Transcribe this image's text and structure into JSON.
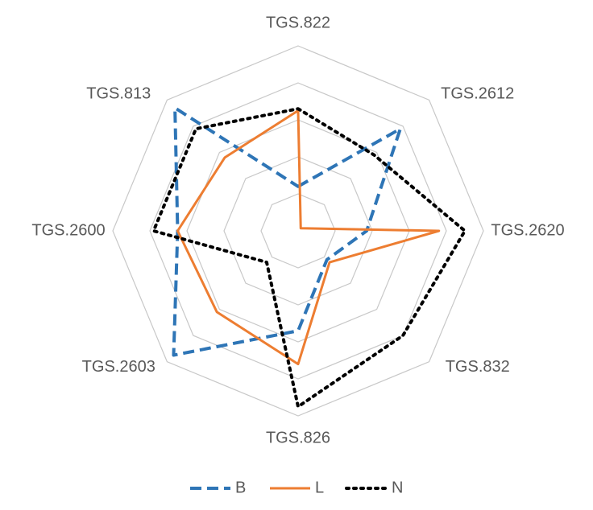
{
  "chart_data": {
    "type": "radar",
    "categories": [
      "TGS.822",
      "TGS.2612",
      "TGS.2620",
      "TGS.832",
      "TGS.826",
      "TGS.2603",
      "TGS.2600",
      "TGS.813"
    ],
    "ylim": [
      0,
      5
    ],
    "yticks": [
      1,
      2,
      3,
      4,
      5
    ],
    "grid": true,
    "legend": "bottom",
    "series": [
      {
        "name": "B",
        "color": "#2e75b6",
        "style": "dashed",
        "values": [
          1.2,
          3.9,
          1.85,
          1.1,
          2.7,
          4.75,
          3.25,
          4.7
        ]
      },
      {
        "name": "L",
        "color": "#ed7d31",
        "style": "solid",
        "values": [
          3.25,
          0.1,
          3.8,
          1.2,
          3.6,
          3.1,
          3.25,
          2.8
        ]
      },
      {
        "name": "N",
        "color": "#000000",
        "style": "dotted",
        "values": [
          3.3,
          2.9,
          4.5,
          4.0,
          4.75,
          1.2,
          3.9,
          3.9
        ]
      }
    ]
  }
}
